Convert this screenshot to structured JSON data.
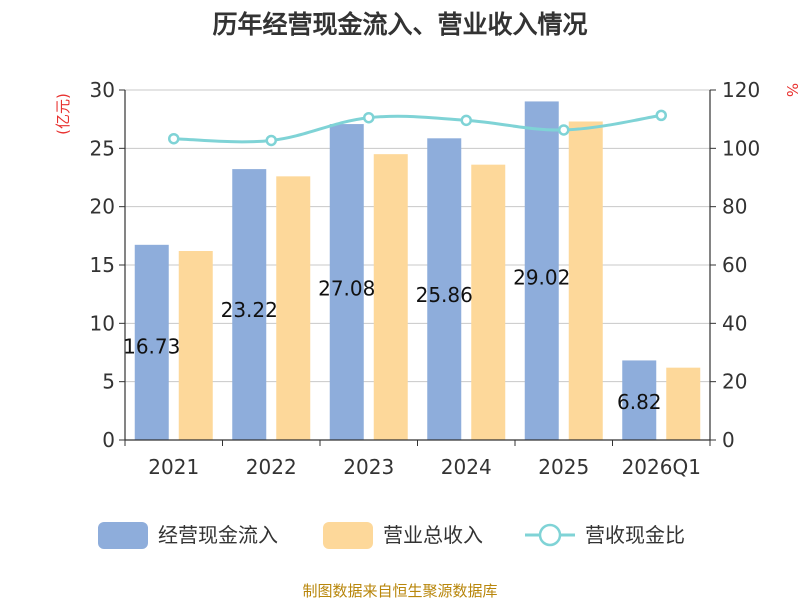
{
  "chart_data": {
    "type": "bar",
    "title": "历年经营现金流入、营业收入情况",
    "left_unit": "(亿元)",
    "right_unit": "%",
    "categories": [
      "2021",
      "2022",
      "2023",
      "2024",
      "2025",
      "2026Q1"
    ],
    "series": [
      {
        "name": "经营现金流入",
        "kind": "bar",
        "axis": "left",
        "color": "#8eaddb",
        "values": [
          16.73,
          23.22,
          27.08,
          25.86,
          29.02,
          6.82
        ],
        "labels": [
          "16.73",
          "23.22",
          "27.08",
          "25.86",
          "29.02",
          "6.82"
        ]
      },
      {
        "name": "营业总收入",
        "kind": "bar",
        "axis": "left",
        "color": "#fdd89a",
        "values": [
          16.2,
          22.6,
          24.5,
          23.6,
          27.3,
          6.2
        ]
      },
      {
        "name": "营收现金比",
        "kind": "line",
        "axis": "right",
        "color": "#7fd3d6",
        "values": [
          103.3,
          102.7,
          110.5,
          109.6,
          106.3,
          111.3
        ]
      }
    ],
    "left_axis": {
      "min": 0,
      "max": 30,
      "ticks": [
        "0",
        "5",
        "10",
        "15",
        "20",
        "25",
        "30"
      ]
    },
    "right_axis": {
      "min": 0,
      "max": 120,
      "ticks": [
        "0",
        "20",
        "40",
        "60",
        "80",
        "100",
        "120"
      ]
    },
    "grid": true,
    "legend_position": "bottom"
  },
  "source_note": "制图数据来自恒生聚源数据库"
}
